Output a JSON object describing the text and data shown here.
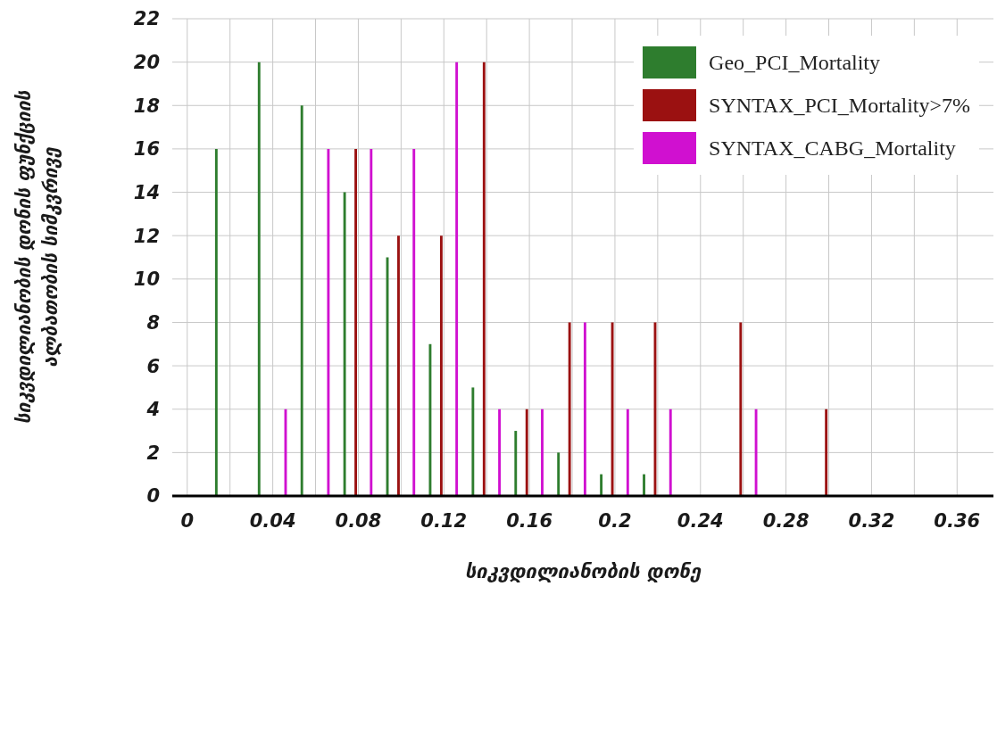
{
  "chart_data": {
    "type": "bar",
    "xlabel": "სიკვდილიანობის დონე",
    "ylabel": "სიკვდილიანობის დონის ფუნქციის ალბათობის სიმკვრივე",
    "series": [
      {
        "name": "Geo_PCI_Mortality",
        "color": "#2e7d2e",
        "x": [
          0.015,
          0.035,
          0.055,
          0.075,
          0.095,
          0.115,
          0.135,
          0.155,
          0.175,
          0.195,
          0.215
        ],
        "values": [
          16,
          20,
          18,
          14,
          11,
          7,
          5,
          3,
          2,
          1,
          1
        ]
      },
      {
        "name": "SYNTAX_PCI_Mortality>7%",
        "color": "#9b1111",
        "x": [
          0.079,
          0.099,
          0.119,
          0.139,
          0.159,
          0.179,
          0.199,
          0.219,
          0.259,
          0.299
        ],
        "values": [
          16,
          12,
          12,
          20,
          4,
          8,
          8,
          8,
          8,
          4
        ]
      },
      {
        "name": "SYNTAX_CABG_Mortality",
        "color": "#d010d0",
        "x": [
          0.045,
          0.065,
          0.085,
          0.105,
          0.125,
          0.145,
          0.165,
          0.185,
          0.205,
          0.225,
          0.265
        ],
        "values": [
          4,
          16,
          16,
          16,
          20,
          4,
          4,
          8,
          4,
          4,
          4
        ]
      }
    ],
    "xlim": [
      -0.007,
      0.377
    ],
    "xticks": [
      0,
      {
        "value": 0.02,
        "label": null
      },
      0.04,
      {
        "value": 0.06,
        "label": null
      },
      0.08,
      {
        "value": 0.1,
        "label": null
      },
      0.12,
      {
        "value": 0.14,
        "label": null
      },
      0.16,
      {
        "value": 0.18,
        "label": null
      },
      0.2,
      {
        "value": 0.22,
        "label": null
      },
      0.24,
      {
        "value": 0.26,
        "label": null
      },
      0.28,
      {
        "value": 0.3,
        "label": null
      },
      0.32,
      {
        "value": 0.34,
        "label": null
      },
      0.36
    ],
    "ylim": [
      0,
      22
    ],
    "yticks": [
      0,
      2,
      4,
      6,
      8,
      10,
      12,
      14,
      16,
      18,
      20,
      22
    ],
    "grid": true,
    "legend": "top right"
  }
}
